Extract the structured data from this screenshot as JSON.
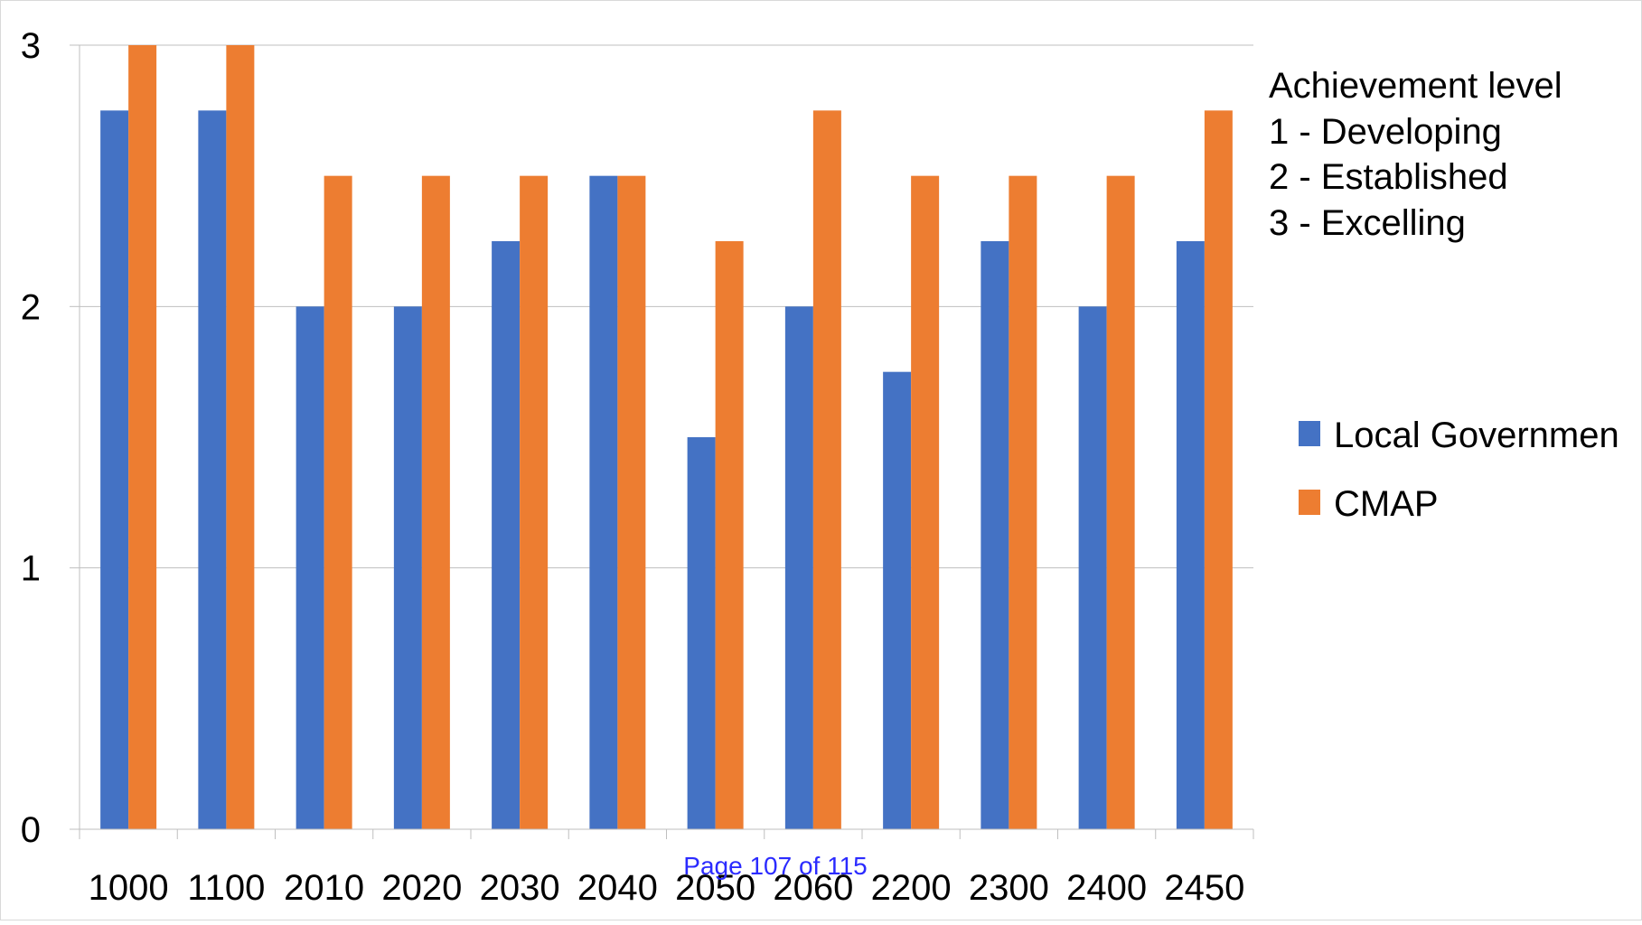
{
  "chart_data": {
    "type": "bar",
    "categories": [
      "1000",
      "1100",
      "2010",
      "2020",
      "2030",
      "2040",
      "2050",
      "2060",
      "2200",
      "2300",
      "2400",
      "2450"
    ],
    "series": [
      {
        "name": "Local Governmen",
        "color": "#4472c4",
        "values": [
          2.75,
          2.75,
          2.0,
          2.0,
          2.25,
          2.5,
          1.5,
          2.0,
          1.75,
          2.25,
          2.0,
          2.25
        ]
      },
      {
        "name": "CMAP",
        "color": "#ed7d31",
        "values": [
          3.0,
          3.0,
          2.5,
          2.5,
          2.5,
          2.5,
          2.25,
          2.75,
          2.5,
          2.5,
          2.5,
          2.75
        ]
      }
    ],
    "ylim": [
      0,
      3
    ],
    "yticks": [
      "0",
      "1",
      "2",
      "3"
    ],
    "grid": true,
    "legend_position": "right",
    "annotation": [
      "Achievement level",
      "1 - Developing",
      "2 - Established",
      "3 - Excelling"
    ]
  },
  "footer": {
    "page_label": "Page 107 of 115"
  }
}
